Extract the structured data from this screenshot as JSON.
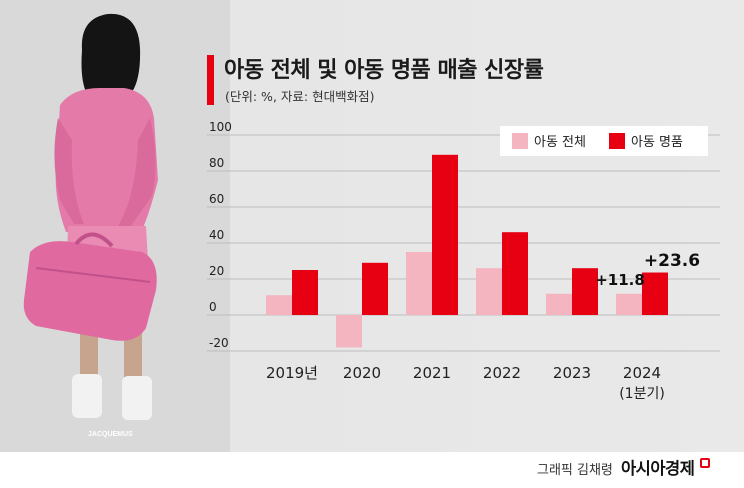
{
  "title": "아동 전체 및 아동 명품 매출 신장률",
  "subtitle": "(단위: %, 자료: 현대백화점)",
  "chart_data": {
    "type": "bar",
    "categories": [
      "2019년",
      "2020",
      "2021",
      "2022",
      "2023",
      "2024"
    ],
    "category_sublabels": [
      "",
      "",
      "",
      "",
      "",
      "(1분기)"
    ],
    "series": [
      {
        "name": "아동 전체",
        "color": "#f5b5c0",
        "values": [
          11,
          -18,
          35,
          26,
          11.8,
          11.8
        ]
      },
      {
        "name": "아동 명품",
        "color": "#e60012",
        "values": [
          25,
          29,
          89,
          46,
          26,
          23.6
        ]
      }
    ],
    "data_labels": [
      "+11.8",
      "+23.6"
    ],
    "yticks": [
      100,
      80,
      60,
      40,
      20,
      0,
      -20
    ],
    "ylim": [
      -20,
      100
    ],
    "grid": true,
    "legend_position": "top-right"
  },
  "photo": {
    "caption": "JACQUEMUS",
    "description_icon": "child-holding-pink-bag"
  },
  "footer": {
    "credit": "그래픽 김채령",
    "brand": "아시아경제"
  }
}
